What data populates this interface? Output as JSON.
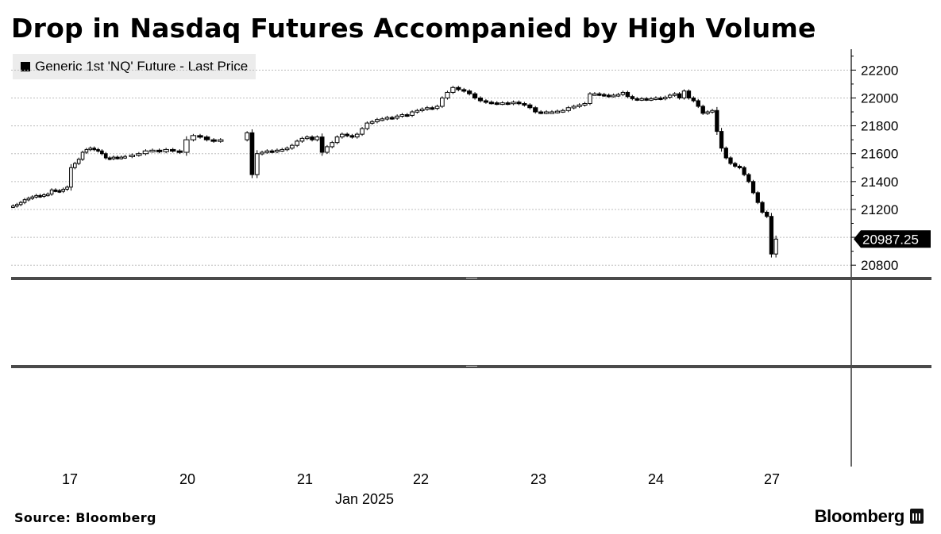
{
  "title": "Drop in Nasdaq Futures Accompanied by High Volume",
  "legend": {
    "label": "Generic 1st 'NQ' Future - Last Price"
  },
  "source": "Source: Bloomberg",
  "brand": "Bloomberg",
  "colors": {
    "candle": "#000000",
    "grid": "#bdbdbd",
    "panel_divider": "#4a4a4a"
  },
  "chart_data": {
    "type": "candlestick",
    "title": "Drop in Nasdaq Futures Accompanied by High Volume",
    "series_name": "Generic 1st 'NQ' Future - Last Price",
    "x_tick_labels": [
      "17",
      "20",
      "21",
      "22",
      "23",
      "24",
      "27"
    ],
    "x_axis_sublabel": "Jan 2025",
    "y_tick_labels": [
      "22200",
      "22000",
      "21800",
      "21600",
      "21400",
      "21200",
      "20800"
    ],
    "ylim": [
      20710,
      22350
    ],
    "grid": true,
    "last_price": 20987.25,
    "last_price_label": "20987.25",
    "sessions": [
      {
        "day": "17",
        "closes": [
          21225,
          21235,
          21250,
          21270,
          21280,
          21290,
          21300,
          21295,
          21305,
          21310,
          21340,
          21335,
          21330,
          21345,
          21360,
          21500,
          21530,
          21560,
          21610,
          21630,
          21640,
          21630,
          21620,
          21600,
          21570,
          21565,
          21575,
          21570,
          21575,
          21580
        ]
      },
      {
        "day": "20",
        "closes": [
          21590,
          21600,
          21620,
          21625,
          21615,
          21630,
          21620,
          21610,
          21700,
          21730,
          21720,
          21700,
          21690,
          21700
        ]
      },
      {
        "day": "21",
        "closes": [
          21750,
          21450,
          21600,
          21610,
          21620,
          21615,
          21625,
          21630,
          21640,
          21660,
          21690,
          21710,
          21720,
          21700,
          21720,
          21610,
          21650,
          21680,
          21720,
          21740,
          21730,
          21720,
          21740,
          21780,
          21820,
          21830,
          21845,
          21850,
          21860,
          21855,
          21870,
          21880,
          21875,
          21900,
          21910,
          21920,
          21930,
          21925,
          21940,
          22000
        ]
      },
      {
        "day": "22",
        "closes": [
          22040,
          22075,
          22060,
          22050,
          22030,
          22000,
          21980,
          21970,
          21965,
          21960,
          21965,
          21960,
          21970,
          21960,
          21950,
          21930,
          21900,
          21895,
          21900,
          21900,
          21905,
          21910,
          21930,
          21940,
          21950,
          21960
        ]
      },
      {
        "day": "23",
        "closes": [
          22030,
          22030,
          22025,
          22020,
          22015,
          22020,
          22025,
          22040,
          22010,
          21995,
          21990,
          21995,
          21990,
          21995,
          22000,
          21995,
          22005,
          22020,
          22030,
          22000,
          22050,
          22000,
          21980,
          21940,
          21890,
          21900,
          21910
        ]
      },
      {
        "day": "24",
        "closes": [
          21760,
          21640,
          21570,
          21530,
          21510,
          21500,
          21450,
          21400,
          21320,
          21250,
          21180,
          21150,
          20880,
          20987.25
        ]
      }
    ],
    "volume_panel": {
      "label": "",
      "values": []
    }
  }
}
